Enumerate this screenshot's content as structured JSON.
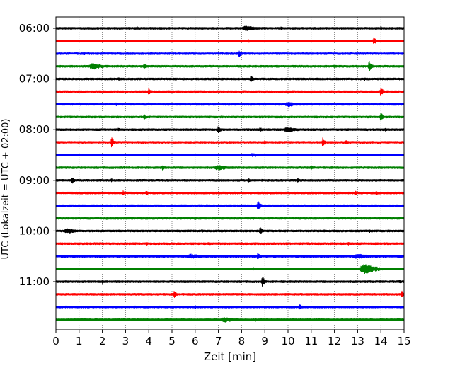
{
  "chart_data": {
    "type": "line",
    "subtype": "helicorder",
    "xlabel": "Zeit  [min]",
    "ylabel": "UTC (Lokalzeit = UTC + 02:00)",
    "xlim": [
      0,
      15
    ],
    "x_ticks": [
      0,
      1,
      2,
      3,
      4,
      5,
      6,
      7,
      8,
      9,
      10,
      11,
      12,
      13,
      14,
      15
    ],
    "x_tick_labels": [
      "0",
      "1",
      "2",
      "3",
      "4",
      "5",
      "6",
      "7",
      "8",
      "9",
      "10",
      "11",
      "12",
      "13",
      "14",
      "15"
    ],
    "y_tick_labels": [
      "06:00",
      "07:00",
      "08:00",
      "09:00",
      "10:00",
      "11:00"
    ],
    "grid": "vertical dotted",
    "trace_colors": [
      "#000000",
      "#ff0000",
      "#0000ff",
      "#008000"
    ],
    "trace_count": 24,
    "trace_minutes": 15,
    "events": [
      {
        "trace": 0,
        "minute": 3.5,
        "amp": 3
      },
      {
        "trace": 0,
        "minute": 8.2,
        "amp": 4,
        "width": 0.6
      },
      {
        "trace": 0,
        "minute": 9.7,
        "amp": 3
      },
      {
        "trace": 0,
        "minute": 14.0,
        "amp": 3
      },
      {
        "trace": 1,
        "minute": 8.3,
        "amp": 3
      },
      {
        "trace": 1,
        "minute": 13.7,
        "amp": 6
      },
      {
        "trace": 2,
        "minute": 1.2,
        "amp": 3
      },
      {
        "trace": 2,
        "minute": 7.9,
        "amp": 6
      },
      {
        "trace": 3,
        "minute": 1.6,
        "amp": 5,
        "width": 0.5
      },
      {
        "trace": 3,
        "minute": 3.8,
        "amp": 5
      },
      {
        "trace": 3,
        "minute": 12.0,
        "amp": 3
      },
      {
        "trace": 3,
        "minute": 13.5,
        "amp": 9
      },
      {
        "trace": 4,
        "minute": 2.7,
        "amp": 3
      },
      {
        "trace": 4,
        "minute": 8.4,
        "amp": 6
      },
      {
        "trace": 4,
        "minute": 13.3,
        "amp": 3
      },
      {
        "trace": 5,
        "minute": 4.0,
        "amp": 5
      },
      {
        "trace": 5,
        "minute": 14.0,
        "amp": 7
      },
      {
        "trace": 6,
        "minute": 2.6,
        "amp": 3
      },
      {
        "trace": 6,
        "minute": 10.0,
        "amp": 4,
        "width": 0.5
      },
      {
        "trace": 7,
        "minute": 3.8,
        "amp": 5
      },
      {
        "trace": 7,
        "minute": 14.0,
        "amp": 7
      },
      {
        "trace": 8,
        "minute": 2.7,
        "amp": 3
      },
      {
        "trace": 8,
        "minute": 7.0,
        "amp": 6
      },
      {
        "trace": 8,
        "minute": 8.8,
        "amp": 4
      },
      {
        "trace": 8,
        "minute": 10.0,
        "amp": 4,
        "width": 0.6
      },
      {
        "trace": 8,
        "minute": 14.2,
        "amp": 3
      },
      {
        "trace": 9,
        "minute": 2.4,
        "amp": 8
      },
      {
        "trace": 9,
        "minute": 9.0,
        "amp": 3
      },
      {
        "trace": 9,
        "minute": 11.5,
        "amp": 7
      },
      {
        "trace": 9,
        "minute": 12.5,
        "amp": 4
      },
      {
        "trace": 10,
        "minute": 8.5,
        "amp": 3,
        "width": 0.6
      },
      {
        "trace": 11,
        "minute": 4.6,
        "amp": 4
      },
      {
        "trace": 11,
        "minute": 7.0,
        "amp": 4,
        "width": 0.6
      },
      {
        "trace": 11,
        "minute": 11.0,
        "amp": 4
      },
      {
        "trace": 12,
        "minute": 0.7,
        "amp": 6
      },
      {
        "trace": 12,
        "minute": 2.4,
        "amp": 3
      },
      {
        "trace": 12,
        "minute": 8.3,
        "amp": 4
      },
      {
        "trace": 12,
        "minute": 10.4,
        "amp": 4
      },
      {
        "trace": 13,
        "minute": 2.9,
        "amp": 4
      },
      {
        "trace": 13,
        "minute": 3.9,
        "amp": 4
      },
      {
        "trace": 13,
        "minute": 12.9,
        "amp": 4
      },
      {
        "trace": 13,
        "minute": 13.8,
        "amp": 4
      },
      {
        "trace": 14,
        "minute": 6.5,
        "amp": 3
      },
      {
        "trace": 14,
        "minute": 8.7,
        "amp": 8
      },
      {
        "trace": 15,
        "minute": 2.2,
        "amp": 3
      },
      {
        "trace": 15,
        "minute": 6.0,
        "amp": 3
      },
      {
        "trace": 15,
        "minute": 8.5,
        "amp": 3
      },
      {
        "trace": 16,
        "minute": 0.5,
        "amp": 4,
        "width": 0.5
      },
      {
        "trace": 16,
        "minute": 6.3,
        "amp": 3
      },
      {
        "trace": 16,
        "minute": 8.8,
        "amp": 6
      },
      {
        "trace": 16,
        "minute": 13.5,
        "amp": 3
      },
      {
        "trace": 17,
        "minute": 3.9,
        "amp": 3
      },
      {
        "trace": 17,
        "minute": 6.6,
        "amp": 3
      },
      {
        "trace": 17,
        "minute": 12.6,
        "amp": 3
      },
      {
        "trace": 18,
        "minute": 5.8,
        "amp": 4,
        "width": 0.6
      },
      {
        "trace": 18,
        "minute": 8.7,
        "amp": 6
      },
      {
        "trace": 18,
        "minute": 13.0,
        "amp": 4,
        "width": 0.7
      },
      {
        "trace": 19,
        "minute": 8.5,
        "amp": 3
      },
      {
        "trace": 19,
        "minute": 13.3,
        "amp": 8,
        "width": 0.6
      },
      {
        "trace": 20,
        "minute": 2.0,
        "amp": 3
      },
      {
        "trace": 20,
        "minute": 8.9,
        "amp": 8
      },
      {
        "trace": 20,
        "minute": 14.8,
        "amp": 3
      },
      {
        "trace": 21,
        "minute": 5.1,
        "amp": 6
      },
      {
        "trace": 21,
        "minute": 14.9,
        "amp": 6
      },
      {
        "trace": 22,
        "minute": 6.0,
        "amp": 3
      },
      {
        "trace": 22,
        "minute": 10.5,
        "amp": 5
      },
      {
        "trace": 23,
        "minute": 7.3,
        "amp": 4,
        "width": 0.6
      },
      {
        "trace": 23,
        "minute": 8.6,
        "amp": 3
      }
    ]
  }
}
